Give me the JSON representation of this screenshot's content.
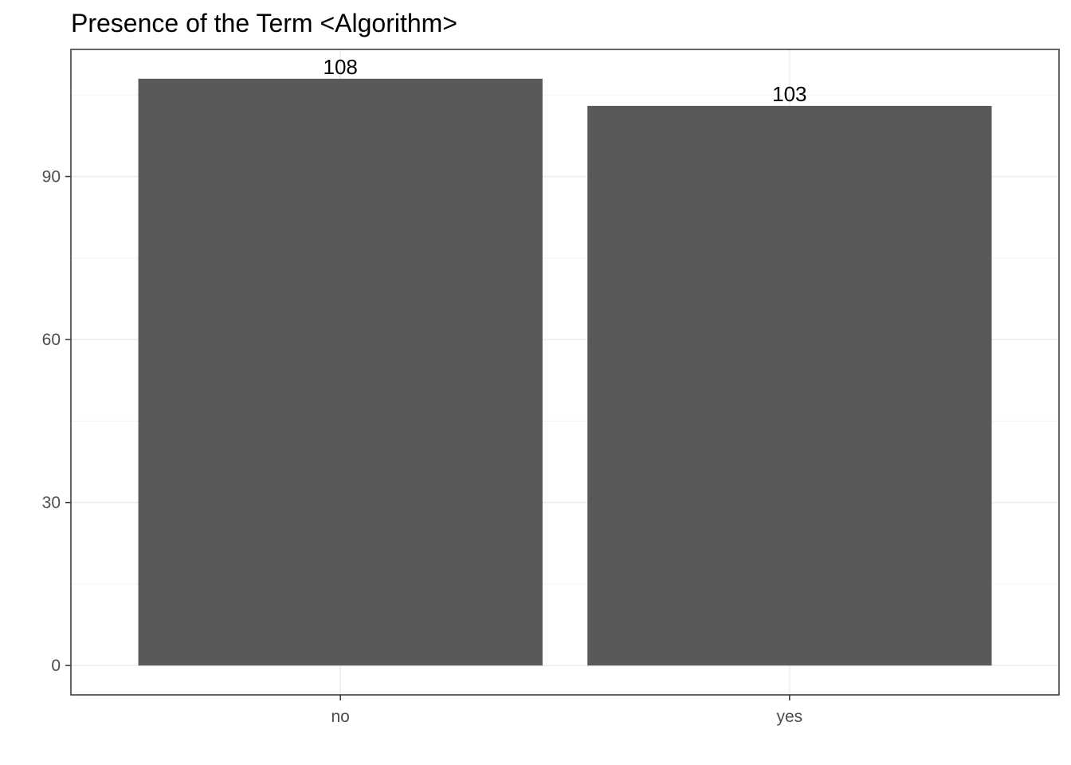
{
  "chart_data": {
    "type": "bar",
    "title": "Presence of the Term <Algorithm>",
    "xlabel": "",
    "ylabel": "",
    "categories": [
      "no",
      "yes"
    ],
    "values": [
      108,
      103
    ],
    "data_labels": [
      "108",
      "103"
    ],
    "ylim": [
      -5.4,
      113.4
    ],
    "yticks": [
      0,
      30,
      60,
      90
    ],
    "ytick_labels": [
      "0",
      "30",
      "60",
      "90"
    ],
    "grid": true,
    "legend": "none",
    "colors": {
      "bar": "#595959",
      "grid": "#ebebeb",
      "border": "#333333"
    }
  }
}
